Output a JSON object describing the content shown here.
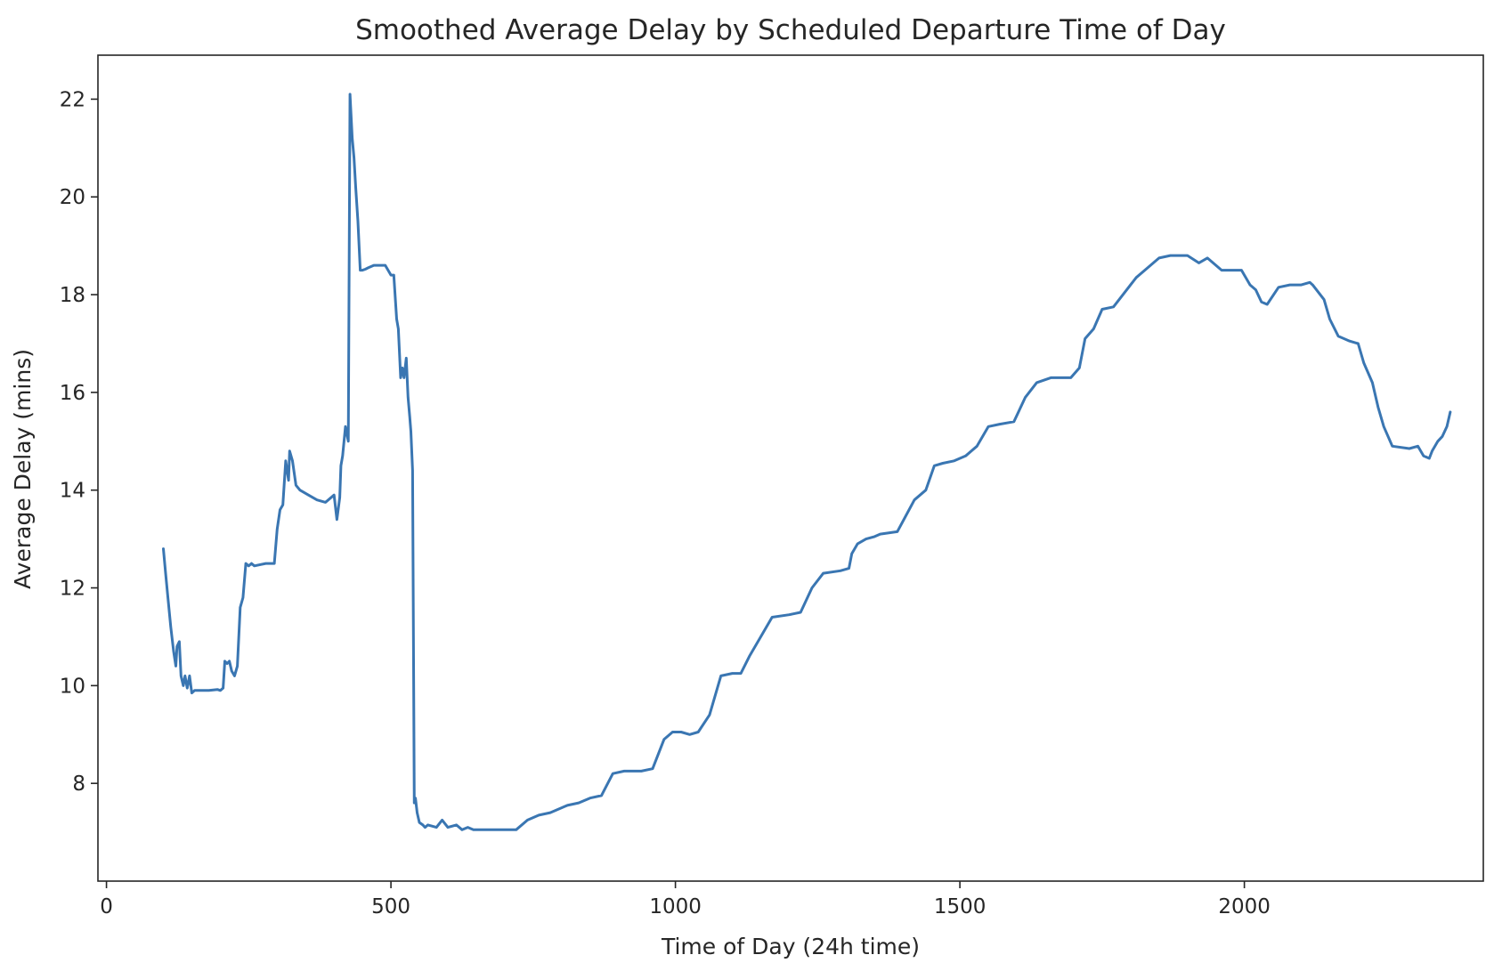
{
  "chart_data": {
    "type": "line",
    "title": "Smoothed Average Delay by Scheduled Departure Time of Day",
    "xlabel": "Time of Day (24h time)",
    "ylabel": "Average Delay (mins)",
    "xlim": [
      -15,
      2420
    ],
    "ylim": [
      6.0,
      22.9
    ],
    "xticks": [
      0,
      500,
      1000,
      1500,
      2000
    ],
    "yticks": [
      8,
      10,
      12,
      14,
      16,
      18,
      20,
      22
    ],
    "grid": false,
    "legend": "none",
    "series": [
      {
        "color": "#3a76b2",
        "x": [
          100,
          104,
          108,
          113,
          118,
          122,
          124,
          128,
          131,
          135,
          138,
          142,
          146,
          150,
          155,
          160,
          170,
          180,
          195,
          200,
          205,
          208,
          212,
          216,
          220,
          225,
          230,
          235,
          240,
          245,
          250,
          255,
          260,
          280,
          295,
          300,
          305,
          310,
          315,
          320,
          322,
          327,
          333,
          340,
          355,
          370,
          385,
          400,
          405,
          410,
          412,
          415,
          420,
          425,
          428,
          432,
          435,
          438,
          442,
          446,
          450,
          455,
          460,
          470,
          480,
          490,
          500,
          505,
          510,
          513,
          517,
          520,
          523,
          527,
          530,
          533,
          535,
          538,
          541,
          543,
          546,
          550,
          556,
          560,
          565,
          580,
          590,
          600,
          615,
          625,
          635,
          645,
          660,
          680,
          700,
          720,
          740,
          760,
          780,
          800,
          810,
          830,
          850,
          870,
          890,
          910,
          940,
          960,
          980,
          995,
          1010,
          1025,
          1040,
          1060,
          1080,
          1100,
          1115,
          1130,
          1150,
          1160,
          1170,
          1200,
          1220,
          1240,
          1260,
          1290,
          1305,
          1310,
          1320,
          1335,
          1350,
          1360,
          1390,
          1420,
          1440,
          1455,
          1470,
          1490,
          1510,
          1530,
          1550,
          1570,
          1595,
          1615,
          1635,
          1660,
          1675,
          1695,
          1710,
          1720,
          1735,
          1750,
          1770,
          1790,
          1810,
          1830,
          1850,
          1870,
          1900,
          1920,
          1935,
          1960,
          1975,
          1995,
          2010,
          2020,
          2030,
          2040,
          2060,
          2080,
          2100,
          2115,
          2120,
          2140,
          2150,
          2165,
          2185,
          2200,
          2210,
          2225,
          2235,
          2245,
          2260,
          2290,
          2305,
          2315,
          2325,
          2330,
          2340,
          2348,
          2356,
          2362
        ],
        "y": [
          12.8,
          12.3,
          11.8,
          11.2,
          10.7,
          10.4,
          10.8,
          10.9,
          10.2,
          10.0,
          10.2,
          9.95,
          10.2,
          9.85,
          9.9,
          9.9,
          9.9,
          9.9,
          9.92,
          9.9,
          9.95,
          10.5,
          10.45,
          10.5,
          10.3,
          10.2,
          10.4,
          11.6,
          11.8,
          12.5,
          12.45,
          12.5,
          12.45,
          12.5,
          12.5,
          13.2,
          13.6,
          13.7,
          14.6,
          14.2,
          14.8,
          14.6,
          14.1,
          14.0,
          13.9,
          13.8,
          13.75,
          13.9,
          13.4,
          13.85,
          14.5,
          14.7,
          15.3,
          15.0,
          22.1,
          21.2,
          20.8,
          20.2,
          19.5,
          18.5,
          18.5,
          18.52,
          18.55,
          18.6,
          18.6,
          18.6,
          18.4,
          18.4,
          17.5,
          17.3,
          16.3,
          16.5,
          16.3,
          16.7,
          15.9,
          15.5,
          15.2,
          14.4,
          7.6,
          7.7,
          7.4,
          7.2,
          7.15,
          7.1,
          7.15,
          7.1,
          7.25,
          7.1,
          7.15,
          7.05,
          7.1,
          7.05,
          7.05,
          7.05,
          7.05,
          7.05,
          7.25,
          7.35,
          7.4,
          7.5,
          7.55,
          7.6,
          7.7,
          7.75,
          8.2,
          8.25,
          8.25,
          8.3,
          8.9,
          9.05,
          9.05,
          9.0,
          9.05,
          9.4,
          10.2,
          10.25,
          10.25,
          10.6,
          11.0,
          11.2,
          11.4,
          11.45,
          11.5,
          12.0,
          12.3,
          12.35,
          12.4,
          12.7,
          12.9,
          13.0,
          13.05,
          13.1,
          13.15,
          13.8,
          14.0,
          14.5,
          14.55,
          14.6,
          14.7,
          14.9,
          15.3,
          15.35,
          15.4,
          15.9,
          16.2,
          16.3,
          16.3,
          16.3,
          16.5,
          17.1,
          17.3,
          17.7,
          17.75,
          18.05,
          18.35,
          18.55,
          18.75,
          18.8,
          18.8,
          18.65,
          18.75,
          18.5,
          18.5,
          18.5,
          18.2,
          18.1,
          17.85,
          17.8,
          18.15,
          18.2,
          18.2,
          18.25,
          18.2,
          17.9,
          17.5,
          17.15,
          17.05,
          17.0,
          16.6,
          16.2,
          15.7,
          15.3,
          14.9,
          14.85,
          14.9,
          14.7,
          14.65,
          14.8,
          15.0,
          15.1,
          15.3,
          15.6
        ]
      }
    ]
  }
}
